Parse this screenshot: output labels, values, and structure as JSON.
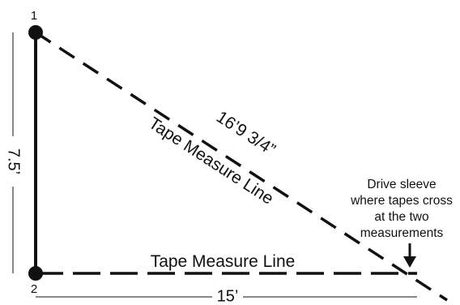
{
  "points": {
    "point_1_label": "1",
    "point_2_label": "2"
  },
  "measurements": {
    "vertical_side": "7.5’",
    "horizontal_side": "15’",
    "diagonal": "16’9 3/4”"
  },
  "lines": {
    "diagonal_label": "Tape Measure Line",
    "horizontal_label": "Tape Measure Line"
  },
  "callout": {
    "line_1": "Drive sleeve",
    "line_2": "where tapes cross",
    "line_3": "at the two",
    "line_4": "measurements"
  },
  "colors": {
    "ink": "#111111",
    "background": "#ffffff"
  }
}
